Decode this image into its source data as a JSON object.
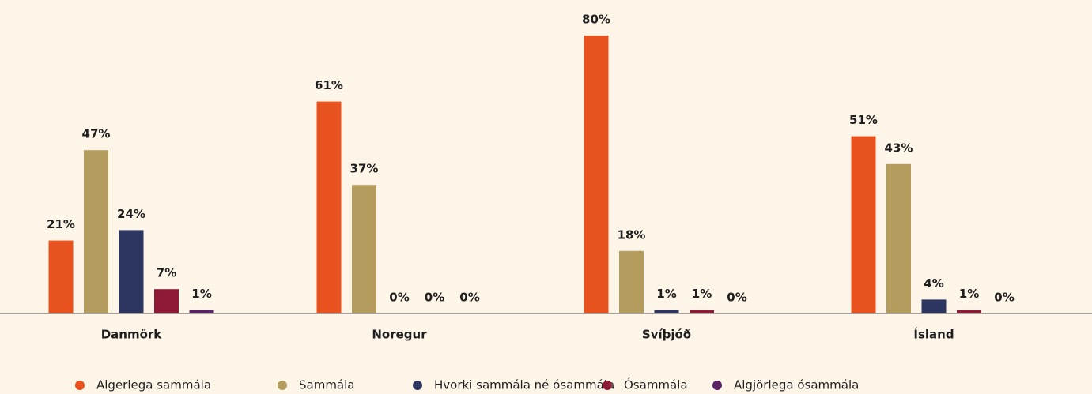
{
  "chart_data": {
    "type": "bar",
    "categories": [
      "Danmörk",
      "Noregur",
      "Svíþjóð",
      "Ísland"
    ],
    "series": [
      {
        "name": "Algerlega sammála",
        "color": "#e8521f",
        "values": [
          21,
          61,
          80,
          51
        ],
        "value_labels": [
          "21%",
          "61%",
          "80%",
          "51%"
        ]
      },
      {
        "name": "Sammála",
        "color": "#b39c5e",
        "values": [
          47,
          37,
          18,
          43
        ],
        "value_labels": [
          "47%",
          "37%",
          "18%",
          "43%"
        ]
      },
      {
        "name": "Hvorki sammála né ósammála",
        "color": "#2b3560",
        "values": [
          24,
          0,
          1,
          4
        ],
        "value_labels": [
          "24%",
          "0%",
          "1%",
          "4%"
        ]
      },
      {
        "name": "Ósammála",
        "color": "#8e1a35",
        "values": [
          7,
          0,
          1,
          1
        ],
        "value_labels": [
          "7%",
          "0%",
          "1%",
          "1%"
        ]
      },
      {
        "name": "Algjörlega ósammála",
        "color": "#5a2266",
        "values": [
          1,
          0,
          0,
          0
        ],
        "value_labels": [
          "1%",
          "0%",
          "0%",
          "0%"
        ]
      }
    ],
    "legend": "bottom"
  }
}
